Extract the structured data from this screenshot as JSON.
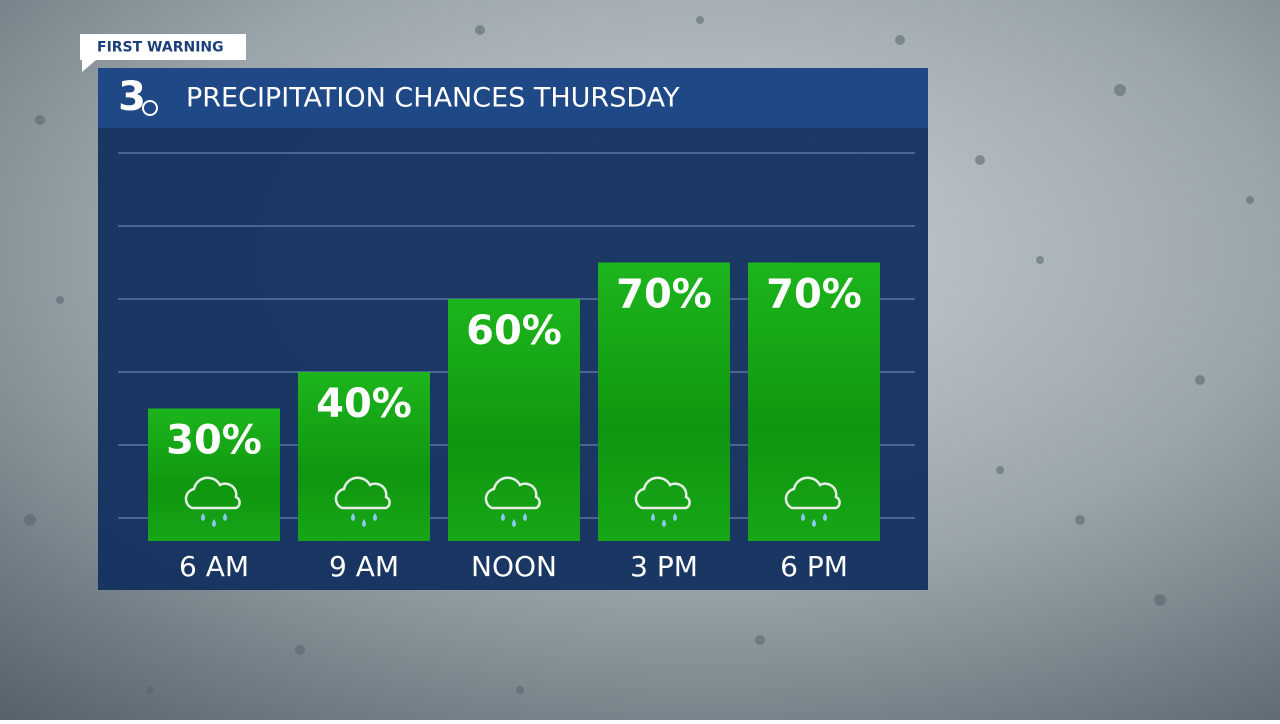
{
  "chart_data": {
    "type": "bar",
    "tag": "FIRST WARNING",
    "logo": "3",
    "title": "PRECIPITATION CHANCES THURSDAY",
    "categories": [
      "6 AM",
      "9 AM",
      "NOON",
      "3 PM",
      "6 PM"
    ],
    "values": [
      30,
      40,
      60,
      70,
      70
    ],
    "value_labels": [
      "30%",
      "40%",
      "60%",
      "70%",
      "70%"
    ],
    "color": "#17a017",
    "ylim": [
      0,
      100
    ],
    "yticks": [
      0,
      20,
      40,
      60,
      80,
      100
    ],
    "grid": true
  }
}
